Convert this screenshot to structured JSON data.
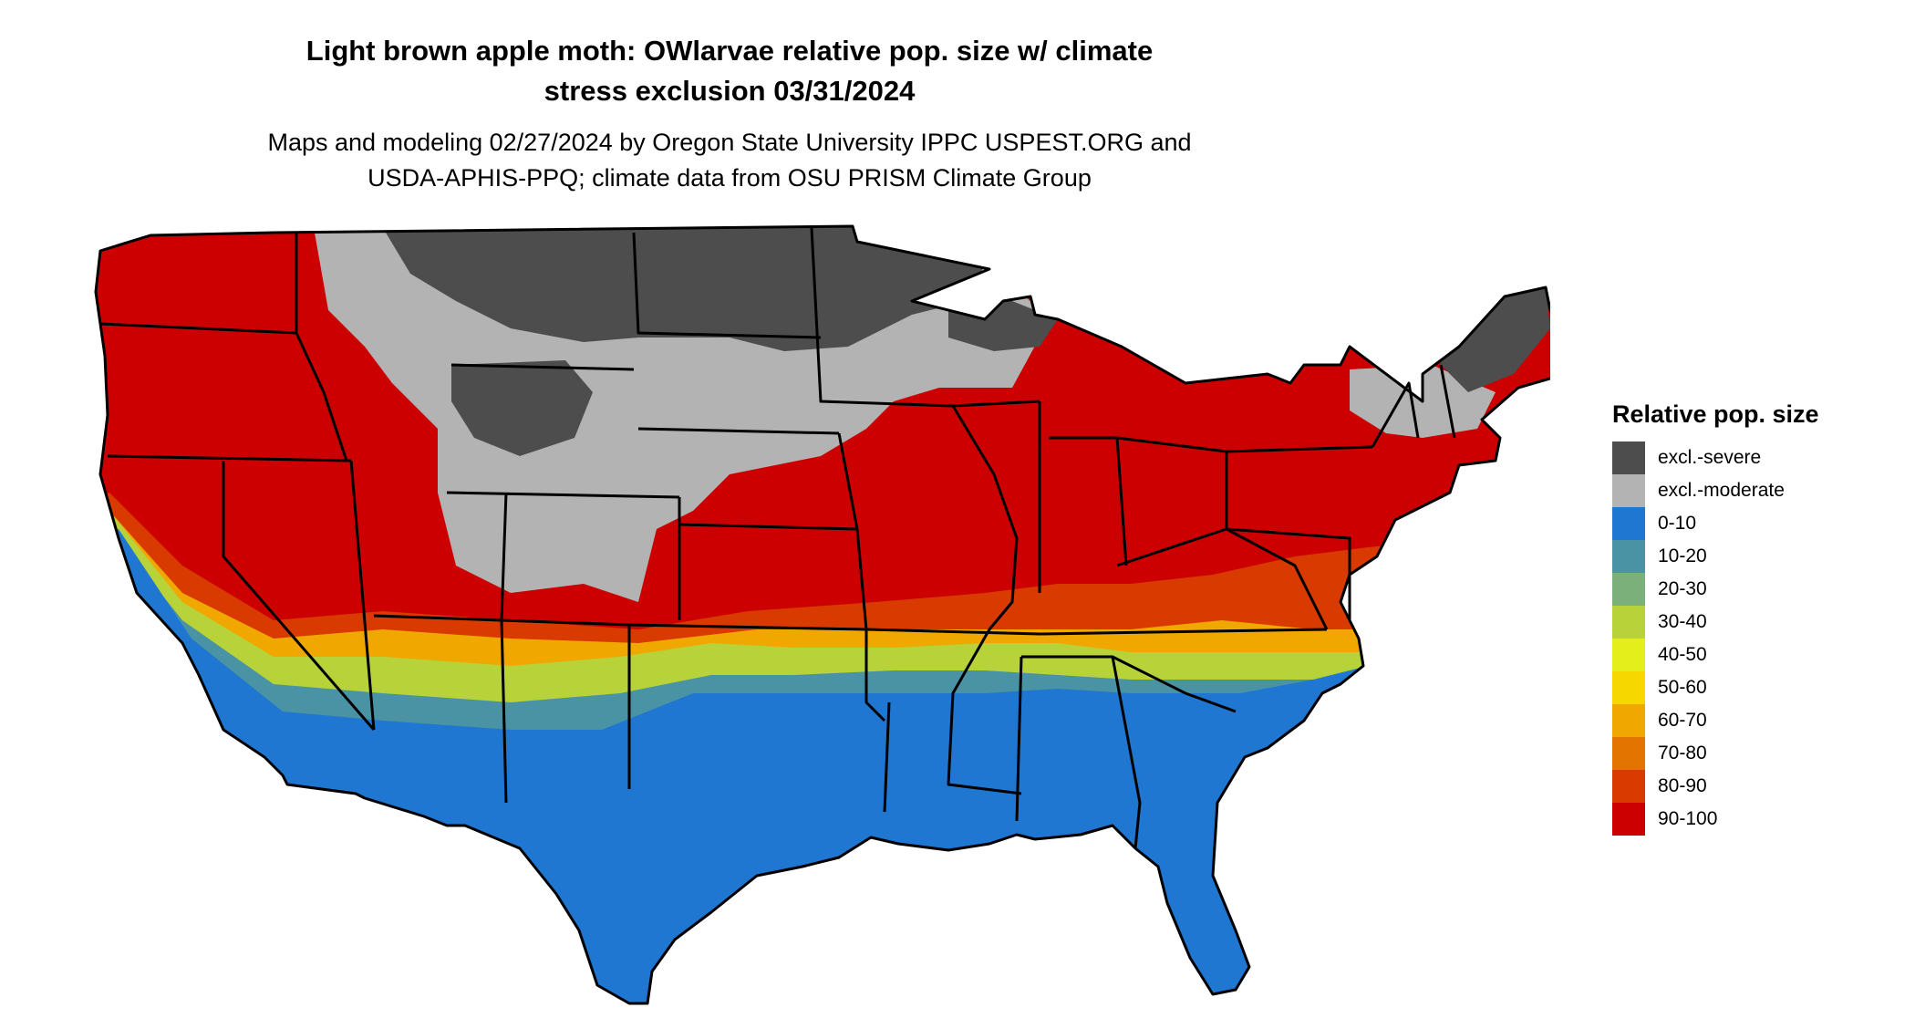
{
  "title": {
    "line1": "Light brown apple moth: OWlarvae relative pop. size w/ climate",
    "line2": "stress exclusion 03/31/2024"
  },
  "subtitle": {
    "line1": "Maps and modeling 02/27/2024 by Oregon State University IPPC USPEST.ORG and",
    "line2": "USDA-APHIS-PPQ; climate data from OSU PRISM Climate Group"
  },
  "legend": {
    "title": "Relative pop. size",
    "items": [
      {
        "label": "excl.-severe",
        "color": "#4d4d4d"
      },
      {
        "label": "excl.-moderate",
        "color": "#b3b3b3"
      },
      {
        "label": "0-10",
        "color": "#1f77d2"
      },
      {
        "label": "10-20",
        "color": "#4a93a5"
      },
      {
        "label": "20-30",
        "color": "#7bb07a"
      },
      {
        "label": "30-40",
        "color": "#b8d23a"
      },
      {
        "label": "40-50",
        "color": "#e4ee1a"
      },
      {
        "label": "50-60",
        "color": "#f6d800"
      },
      {
        "label": "60-70",
        "color": "#f0a800"
      },
      {
        "label": "70-80",
        "color": "#e47400"
      },
      {
        "label": "80-90",
        "color": "#d83a00"
      },
      {
        "label": "90-100",
        "color": "#cc0000"
      }
    ]
  },
  "map_colors": {
    "severe": "#4d4d4d",
    "moderate": "#b3b3b3",
    "low": "#1f77d2",
    "teal": "#4a93a5",
    "green": "#7bb07a",
    "lime": "#b8d23a",
    "yellow": "#f6d800",
    "orange": "#f0a800",
    "darkorange": "#e47400",
    "redorange": "#d83a00",
    "high": "#cc0000",
    "border": "#000000"
  }
}
